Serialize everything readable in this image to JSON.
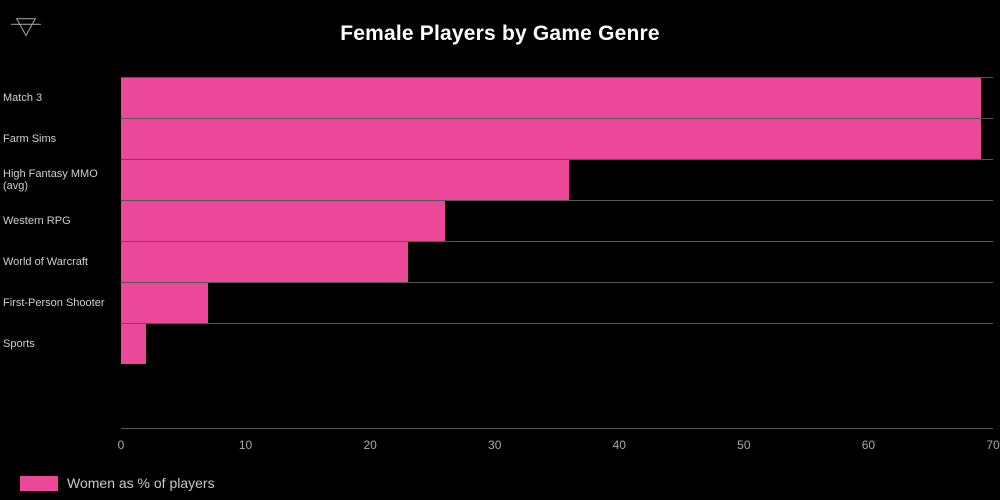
{
  "header": {
    "title": "Female Players by Game Genre"
  },
  "icons": {
    "top_left": "drill-filter-icon"
  },
  "chart_data": {
    "type": "bar",
    "orientation": "horizontal",
    "title": "Female Players by Game Genre",
    "categories": [
      "Match 3",
      "Farm Sims",
      "High Fantasy MMO (avg)",
      "Western RPG",
      "World of Warcraft",
      "First-Person Shooter",
      "Sports"
    ],
    "values": [
      69,
      69,
      36,
      26,
      23,
      7,
      2
    ],
    "series_name": "Women as % of players",
    "xlabel": "",
    "ylabel": "",
    "xlim": [
      0,
      70
    ],
    "xticks": [
      0,
      10,
      20,
      30,
      40,
      50,
      60,
      70
    ],
    "grid": "category-separator-lines",
    "legend_position": "bottom-left"
  },
  "legend": {
    "label": "Women as % of players",
    "swatch_color": "#EC4899"
  },
  "colors": {
    "background": "#000000",
    "bar": "#EC4899",
    "gridline": "#575757",
    "title_text": "#FFFFFF",
    "category_text": "#CFCFCF",
    "tick_text": "#A9A9A9",
    "legend_text": "#C9C9C9",
    "icon": "#9A9A9A"
  }
}
